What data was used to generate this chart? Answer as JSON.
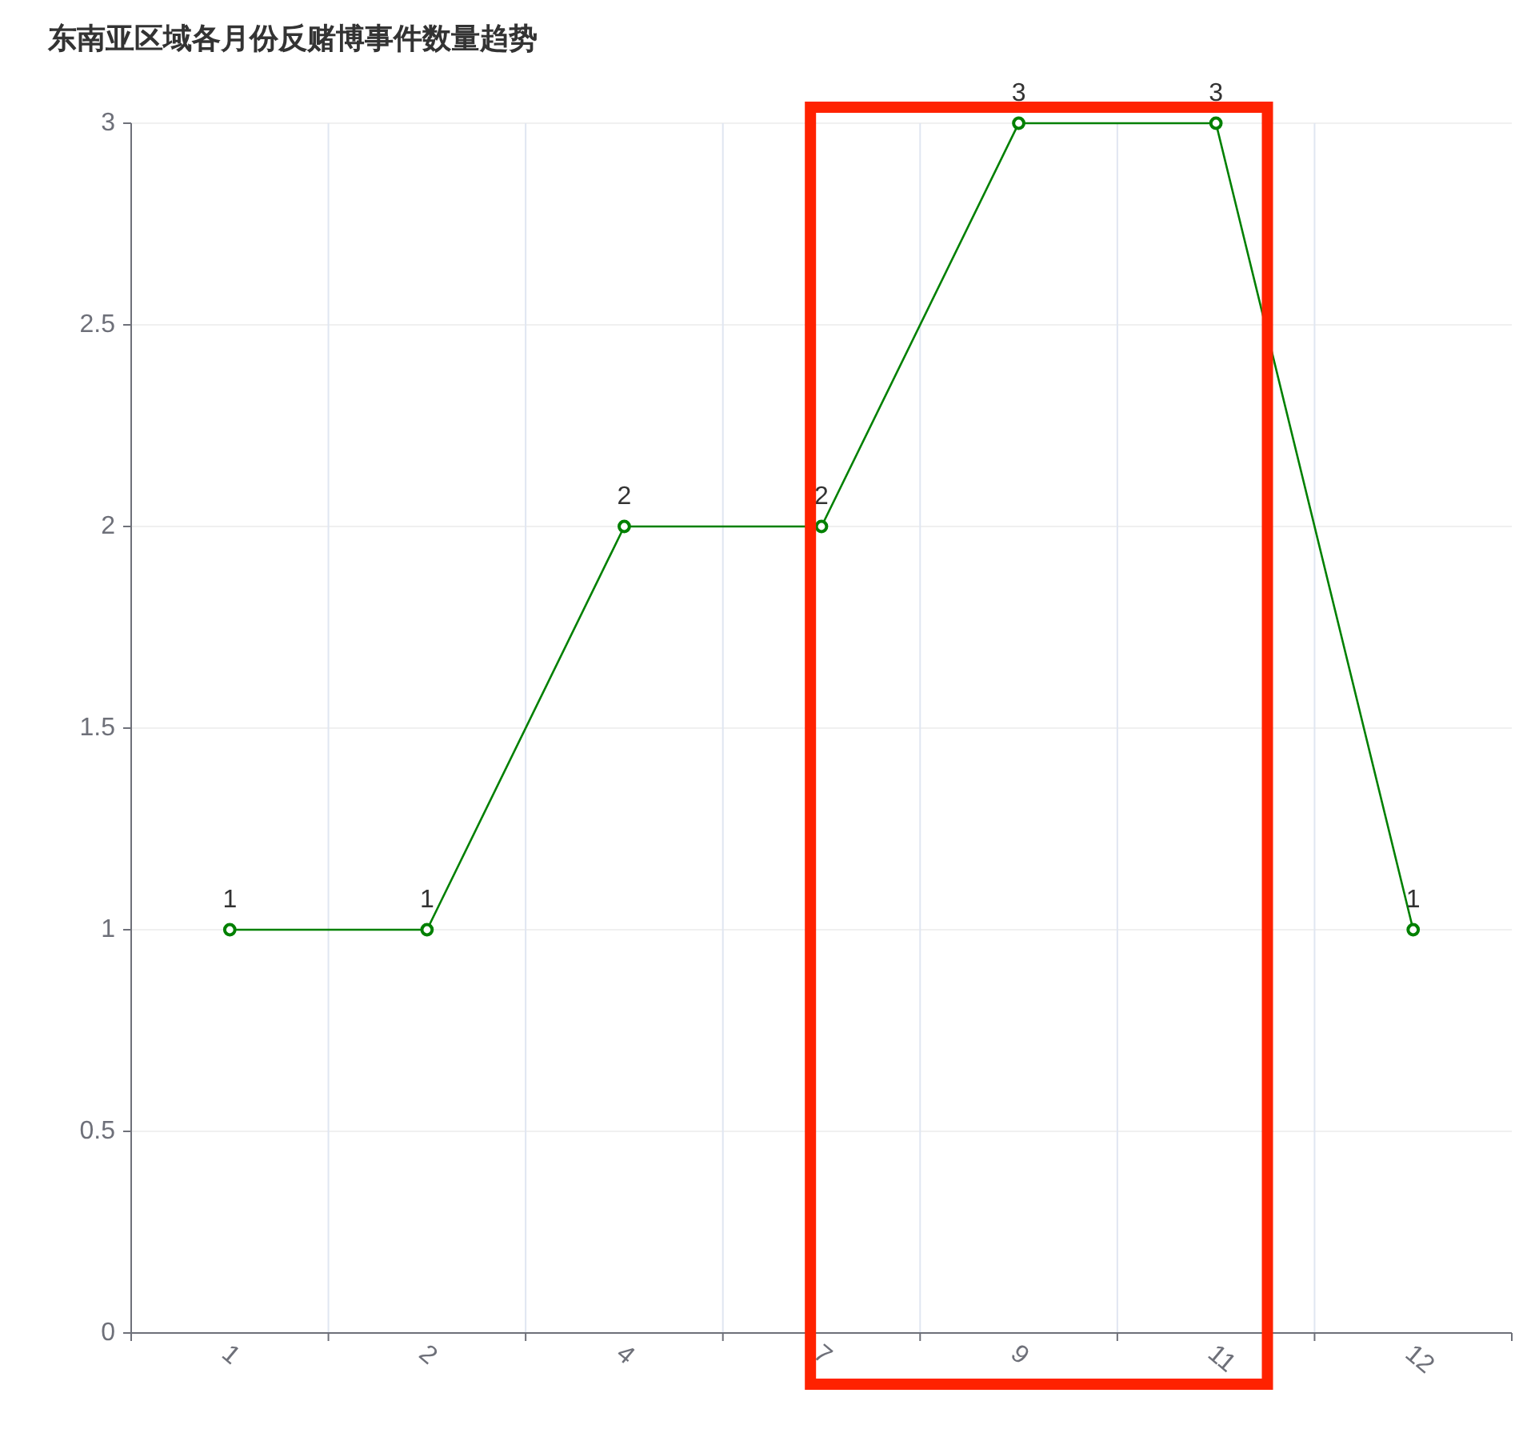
{
  "chart_data": {
    "type": "line",
    "title": "东南亚区域各月份反赌博事件数量趋势",
    "categories": [
      "1",
      "2",
      "4",
      "7",
      "9",
      "11",
      "12"
    ],
    "values": [
      1,
      1,
      2,
      2,
      3,
      3,
      1
    ],
    "color": "#008000",
    "ylim": [
      0,
      3
    ],
    "yticks": [
      0,
      0.5,
      1,
      1.5,
      2,
      2.5,
      3
    ],
    "grid": true,
    "marker": "circle",
    "line_style": "solid",
    "data_labels": true
  }
}
